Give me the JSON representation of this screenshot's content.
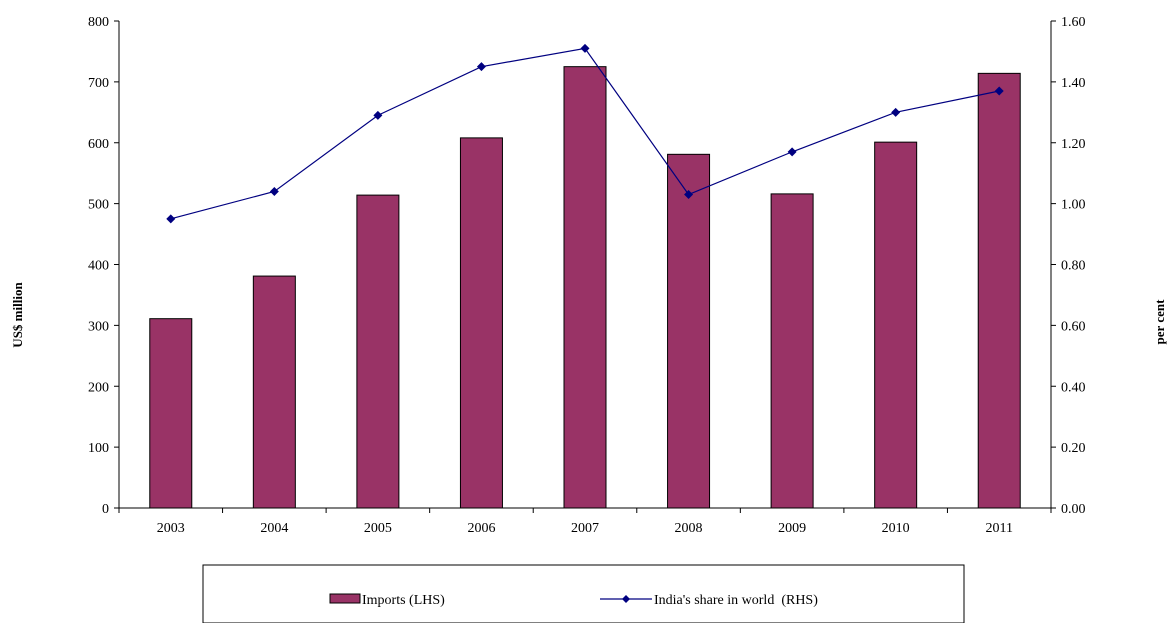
{
  "chart_data": {
    "type": "bar",
    "categories": [
      "2003",
      "2004",
      "2005",
      "2006",
      "2007",
      "2008",
      "2009",
      "2010",
      "2011"
    ],
    "series": [
      {
        "name": "Imports (LHS)",
        "type": "bar",
        "axis": "left",
        "color": "#993366",
        "values": [
          311,
          381,
          514,
          608,
          725,
          581,
          516,
          601,
          714
        ]
      },
      {
        "name": "India's share in world  (RHS)",
        "type": "line",
        "axis": "right",
        "color": "#000080",
        "values": [
          0.95,
          1.04,
          1.29,
          1.45,
          1.51,
          1.03,
          1.17,
          1.3,
          1.37
        ]
      }
    ],
    "ylabel_left": "US$ million",
    "ylabel_right": "per cent",
    "ylim_left": [
      0,
      800
    ],
    "ylim_right": [
      0,
      1.6
    ],
    "yticks_left": [
      "0",
      "100",
      "200",
      "300",
      "400",
      "500",
      "600",
      "700",
      "800"
    ],
    "yticks_right": [
      "0.00",
      "0.20",
      "0.40",
      "0.60",
      "0.80",
      "1.00",
      "1.20",
      "1.40",
      "1.60"
    ],
    "grid": false,
    "legend_position": "bottom"
  }
}
